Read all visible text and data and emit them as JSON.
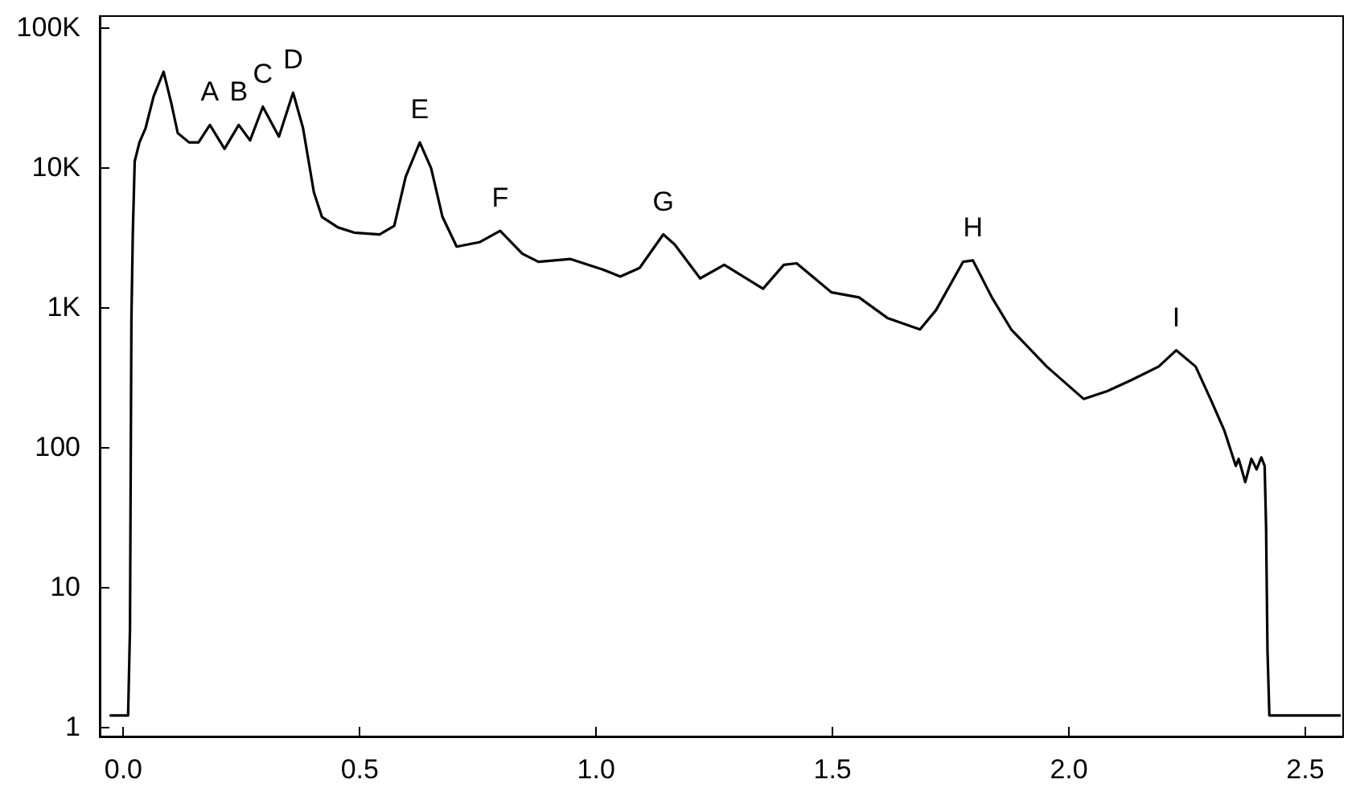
{
  "chart_data": {
    "type": "line",
    "log": "y",
    "grid": false,
    "line_style": "solid",
    "xlim": [
      -0.05,
      2.58
    ],
    "ylim": [
      0.85,
      120000
    ],
    "xticks": [
      {
        "value": 0,
        "label": "0.0"
      },
      0.5,
      {
        "value": 1,
        "label": "1.0"
      },
      1.5,
      {
        "value": 2,
        "label": "2.0"
      },
      2.5
    ],
    "yticks": [
      1,
      10,
      100,
      {
        "value": 1000,
        "label": "1K"
      },
      {
        "value": 10000,
        "label": "10K"
      },
      {
        "value": 100000,
        "label": "100K"
      }
    ],
    "annotations": [
      {
        "text": "A",
        "x": 0.183,
        "y": 20000
      },
      {
        "text": "B",
        "x": 0.244,
        "y": 20000
      },
      {
        "text": "C",
        "x": 0.295,
        "y": 27000
      },
      {
        "text": "D",
        "x": 0.359,
        "y": 34000
      },
      {
        "text": "E",
        "x": 0.627,
        "y": 15000
      },
      {
        "text": "F",
        "x": 0.797,
        "y": 3500
      },
      {
        "text": "G",
        "x": 1.142,
        "y": 3300
      },
      {
        "text": "H",
        "x": 1.797,
        "y": 2150
      },
      {
        "text": "I",
        "x": 2.227,
        "y": 490
      }
    ],
    "series": [
      {
        "color": "#000000",
        "x": [
          -0.027,
          0.01,
          0.014,
          0.017,
          0.02,
          0.024,
          0.034,
          0.047,
          0.064,
          0.085,
          0.102,
          0.115,
          0.139,
          0.159,
          0.183,
          0.214,
          0.244,
          0.268,
          0.295,
          0.329,
          0.359,
          0.38,
          0.403,
          0.42,
          0.454,
          0.488,
          0.542,
          0.573,
          0.597,
          0.627,
          0.651,
          0.675,
          0.705,
          0.753,
          0.797,
          0.844,
          0.878,
          0.946,
          1.014,
          1.051,
          1.092,
          1.142,
          1.166,
          1.22,
          1.271,
          1.353,
          1.397,
          1.424,
          1.498,
          1.556,
          1.617,
          1.685,
          1.719,
          1.776,
          1.797,
          1.837,
          1.878,
          1.953,
          2.031,
          2.081,
          2.132,
          2.19,
          2.227,
          2.268,
          2.302,
          2.329,
          2.353,
          2.359,
          2.373,
          2.386,
          2.397,
          2.407,
          2.414,
          2.417,
          2.42,
          2.424,
          2.573
        ],
        "values": [
          1.2,
          1.2,
          5,
          800,
          3400,
          11000,
          15000,
          19000,
          32000,
          48000,
          28000,
          17500,
          15000,
          15000,
          20000,
          13500,
          20000,
          15500,
          27000,
          16500,
          34000,
          19000,
          6600,
          4400,
          3700,
          3400,
          3300,
          3800,
          8500,
          15000,
          9800,
          4400,
          2700,
          2900,
          3500,
          2400,
          2100,
          2200,
          1850,
          1650,
          1900,
          3300,
          2800,
          1600,
          2000,
          1350,
          2000,
          2050,
          1270,
          1170,
          830,
          690,
          950,
          2100,
          2150,
          1170,
          690,
          375,
          220,
          250,
          300,
          375,
          490,
          375,
          210,
          130,
          73,
          82,
          56,
          82,
          69,
          84,
          73,
          27,
          3.5,
          1.2,
          1.2
        ]
      }
    ]
  }
}
